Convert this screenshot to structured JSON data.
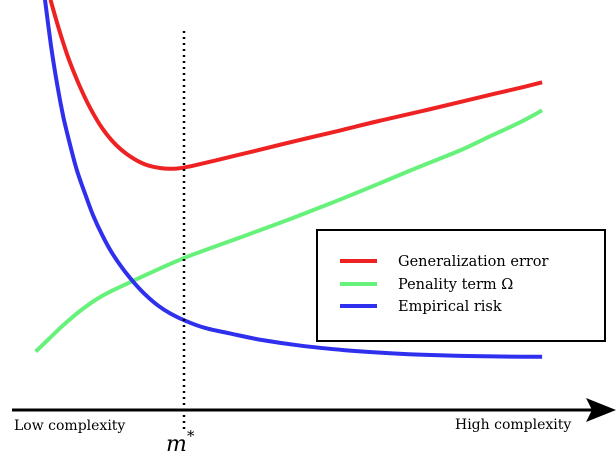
{
  "chart_data": {
    "type": "line",
    "title": "",
    "xlabel": "",
    "ylabel": "",
    "xlim": [
      0,
      100
    ],
    "ylim": [
      0,
      100
    ],
    "grid": false,
    "legend_position": "right",
    "axis_labels": {
      "low": "Low complexity",
      "high": "High complexity"
    },
    "marker": {
      "label": "m",
      "superscript": "*",
      "x": 28.5,
      "style": "dotted"
    },
    "series": [
      {
        "name": "Generalization error",
        "color": "#ee2222",
        "x": [
          8.2,
          9.6,
          11.1,
          12.8,
          14.6,
          16.6,
          18.8,
          21.2,
          23.7,
          26.0,
          28.0,
          29.4,
          31.2,
          35.0,
          41.4,
          48.2,
          55.0,
          61.5,
          68.5,
          75.0,
          80.4,
          84.7,
          88.0
        ],
        "y": [
          102.8,
          94.6,
          86.8,
          79.7,
          73.3,
          67.6,
          63.1,
          59.8,
          57.6,
          56.7,
          56.5,
          56.7,
          57.3,
          58.8,
          61.4,
          64.2,
          66.9,
          69.6,
          72.3,
          74.9,
          77.1,
          78.8,
          80.2
        ]
      },
      {
        "name": "Penality term Ω",
        "color": "#66f27a",
        "x": [
          5.8,
          8.0,
          10.5,
          13.2,
          16.0,
          18.8,
          21.5,
          24.3,
          27.2,
          30.4,
          34.1,
          40.0,
          47.5,
          54.5,
          61.5,
          68.0,
          74.5,
          79.8,
          84.5,
          88.0
        ],
        "y": [
          6.4,
          10.0,
          14.0,
          17.8,
          21.1,
          23.6,
          25.7,
          27.9,
          30.1,
          32.4,
          34.7,
          38.3,
          43.0,
          47.6,
          52.4,
          57.0,
          61.4,
          65.6,
          69.3,
          72.5
        ]
      },
      {
        "name": "Empirical risk",
        "color": "#2f2fee",
        "x": [
          7.3,
          8.3,
          9.3,
          10.3,
          11.4,
          12.5,
          13.8,
          15.1,
          16.6,
          18.2,
          19.9,
          21.7,
          23.6,
          25.6,
          27.8,
          30.3,
          33.3,
          37.3,
          42.5,
          49.0,
          56.0,
          62.0,
          68.0,
          74.0,
          80.0,
          85.0,
          88.0
        ],
        "y": [
          102.8,
          90.0,
          79.4,
          70.6,
          62.9,
          56.0,
          49.7,
          43.8,
          38.3,
          33.4,
          29.2,
          25.4,
          22.0,
          19.1,
          16.7,
          14.7,
          12.9,
          11.4,
          9.6,
          8.0,
          6.8,
          6.1,
          5.6,
          5.3,
          5.1,
          5.0,
          5.0
        ]
      }
    ]
  }
}
